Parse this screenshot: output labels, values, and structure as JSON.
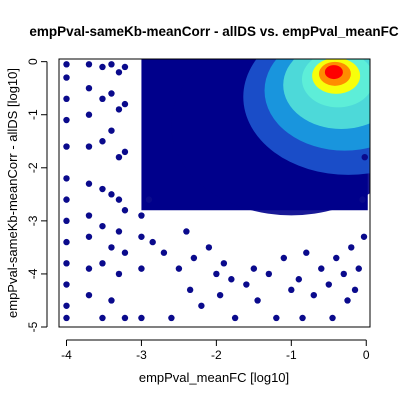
{
  "chart_data": {
    "type": "scatter",
    "title": "empPval-sameKb-meanCorr - allDS vs. empPval_meanFC",
    "xlabel": "empPval_meanFC [log10]",
    "ylabel": "empPval-sameKb-meanCorr - allDS [log10]",
    "xlim": [
      -4.1,
      0.05
    ],
    "ylim": [
      -5.0,
      0.05
    ],
    "x_ticks": [
      -4,
      -3,
      -2,
      -1,
      0
    ],
    "x_tick_labels": [
      "-4",
      "-3",
      "-2",
      "-1",
      "0"
    ],
    "y_ticks": [
      -5,
      -4,
      -3,
      -2,
      -1,
      0
    ],
    "y_tick_labels": [
      "-5",
      "-4",
      "-3",
      "-2",
      "-1",
      "0"
    ],
    "grid": false,
    "legend": "none",
    "point_color": "#0a0a8c",
    "density_colors": [
      "#00008b",
      "#1e5ad2",
      "#19b4e6",
      "#5ff0d7",
      "#ffff00",
      "#ff8c00",
      "#ff0000"
    ],
    "density_peak": {
      "x": -0.45,
      "y": -0.15
    },
    "points": [
      [
        -4.0,
        -0.05
      ],
      [
        -4.0,
        -0.3
      ],
      [
        -4.0,
        -0.7
      ],
      [
        -4.0,
        -1.1
      ],
      [
        -4.0,
        -1.6
      ],
      [
        -4.0,
        -2.2
      ],
      [
        -4.0,
        -2.6
      ],
      [
        -4.0,
        -3.0
      ],
      [
        -4.0,
        -3.4
      ],
      [
        -4.0,
        -3.8
      ],
      [
        -4.0,
        -4.2
      ],
      [
        -4.0,
        -4.6
      ],
      [
        -4.0,
        -4.83
      ],
      [
        -3.7,
        -0.05
      ],
      [
        -3.7,
        -0.5
      ],
      [
        -3.7,
        -1.0
      ],
      [
        -3.7,
        -1.6
      ],
      [
        -3.7,
        -2.3
      ],
      [
        -3.7,
        -2.9
      ],
      [
        -3.7,
        -3.3
      ],
      [
        -3.7,
        -3.9
      ],
      [
        -3.7,
        -4.4
      ],
      [
        -3.52,
        -0.1
      ],
      [
        -3.52,
        -0.7
      ],
      [
        -3.52,
        -1.5
      ],
      [
        -3.52,
        -2.4
      ],
      [
        -3.52,
        -3.1
      ],
      [
        -3.52,
        -3.8
      ],
      [
        -3.52,
        -4.83
      ],
      [
        -3.4,
        -0.05
      ],
      [
        -3.4,
        -0.6
      ],
      [
        -3.4,
        -1.3
      ],
      [
        -3.4,
        -2.5
      ],
      [
        -3.4,
        -3.5
      ],
      [
        -3.4,
        -4.5
      ],
      [
        -3.3,
        -0.2
      ],
      [
        -3.3,
        -0.9
      ],
      [
        -3.3,
        -1.8
      ],
      [
        -3.3,
        -2.6
      ],
      [
        -3.3,
        -3.2
      ],
      [
        -3.3,
        -4.0
      ],
      [
        -3.22,
        -0.1
      ],
      [
        -3.22,
        -0.8
      ],
      [
        -3.22,
        -1.7
      ],
      [
        -3.22,
        -2.8
      ],
      [
        -3.22,
        -3.6
      ],
      [
        -3.22,
        -4.83
      ],
      [
        -3.0,
        -2.9
      ],
      [
        -3.0,
        -3.3
      ],
      [
        -3.0,
        -3.9
      ],
      [
        -3.0,
        -4.83
      ],
      [
        -2.9,
        -2.6
      ],
      [
        -2.85,
        -3.4
      ],
      [
        -2.7,
        -3.6
      ],
      [
        -2.6,
        -4.83
      ],
      [
        -2.5,
        -3.9
      ],
      [
        -2.4,
        -3.2
      ],
      [
        -2.35,
        -4.3
      ],
      [
        -2.3,
        -3.7
      ],
      [
        -2.2,
        -4.6
      ],
      [
        -2.1,
        -3.5
      ],
      [
        -2.0,
        -4.0
      ],
      [
        -1.95,
        -4.4
      ],
      [
        -1.9,
        -3.8
      ],
      [
        -1.8,
        -4.1
      ],
      [
        -1.75,
        -4.83
      ],
      [
        -1.6,
        -4.2
      ],
      [
        -1.5,
        -3.9
      ],
      [
        -1.45,
        -4.5
      ],
      [
        -1.3,
        -4.0
      ],
      [
        -1.2,
        -4.83
      ],
      [
        -1.1,
        -3.7
      ],
      [
        -1.0,
        -4.3
      ],
      [
        -0.9,
        -4.1
      ],
      [
        -0.85,
        -4.83
      ],
      [
        -0.8,
        -3.6
      ],
      [
        -0.7,
        -4.4
      ],
      [
        -0.6,
        -3.9
      ],
      [
        -0.5,
        -4.2
      ],
      [
        -0.45,
        -4.83
      ],
      [
        -0.4,
        -3.7
      ],
      [
        -0.3,
        -4.0
      ],
      [
        -0.25,
        -4.5
      ],
      [
        -0.2,
        -3.5
      ],
      [
        -0.15,
        -4.3
      ],
      [
        -0.1,
        -3.9
      ],
      [
        -0.05,
        -2.6
      ],
      [
        -0.02,
        -1.8
      ],
      [
        -0.03,
        -3.3
      ]
    ]
  }
}
